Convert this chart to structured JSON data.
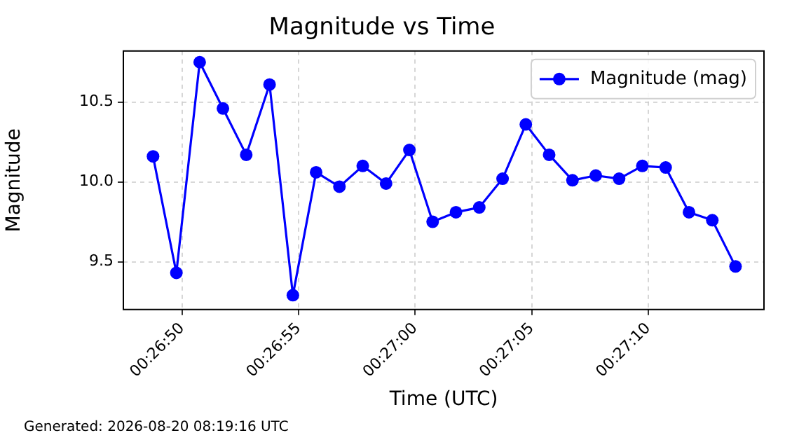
{
  "chart_data": {
    "type": "line",
    "title": "Magnitude vs Time",
    "xlabel": "Time (UTC)",
    "ylabel": "Magnitude",
    "annotations": [
      "Generated: 2026-08-20 08:19:16 UTC"
    ],
    "x": [
      0.446875,
      0.447153,
      0.447431,
      0.447708,
      0.447986,
      0.448264,
      0.448542,
      0.448819,
      0.449097,
      0.449375,
      0.449653,
      0.449931,
      0.450208,
      0.450486,
      0.450764,
      0.451042,
      0.451319,
      0.451597,
      0.451875,
      0.452153,
      0.452431,
      0.452708,
      0.452986,
      0.453264,
      0.453542,
      0.453819
    ],
    "series": [
      {
        "name": "Magnitude (mag)",
        "color": "#0000ff",
        "values": [
          10.16,
          9.43,
          10.75,
          10.46,
          10.17,
          10.61,
          9.29,
          10.06,
          9.97,
          10.1,
          9.99,
          10.2,
          9.75,
          9.81,
          9.84,
          10.02,
          10.36,
          10.17,
          10.01,
          10.04,
          10.02,
          10.1,
          10.09,
          9.81,
          9.76,
          9.47
        ]
      }
    ],
    "xlim": [
      0.446521,
      0.454158
    ],
    "xticks": [
      {
        "value": 0.447222,
        "label": "00:26:50"
      },
      {
        "value": 0.448611,
        "label": "00:26:55"
      },
      {
        "value": 0.45,
        "label": "00:27:00"
      },
      {
        "value": 0.451389,
        "label": "00:27:05"
      },
      {
        "value": 0.452778,
        "label": "00:27:10"
      }
    ],
    "ylim": [
      9.2,
      10.82
    ],
    "yticks": [
      9.5,
      {
        "value": 10,
        "label": "10.0"
      },
      10.5
    ],
    "grid": true,
    "legend": "top right",
    "marker": "circle",
    "line_style": "solid"
  }
}
